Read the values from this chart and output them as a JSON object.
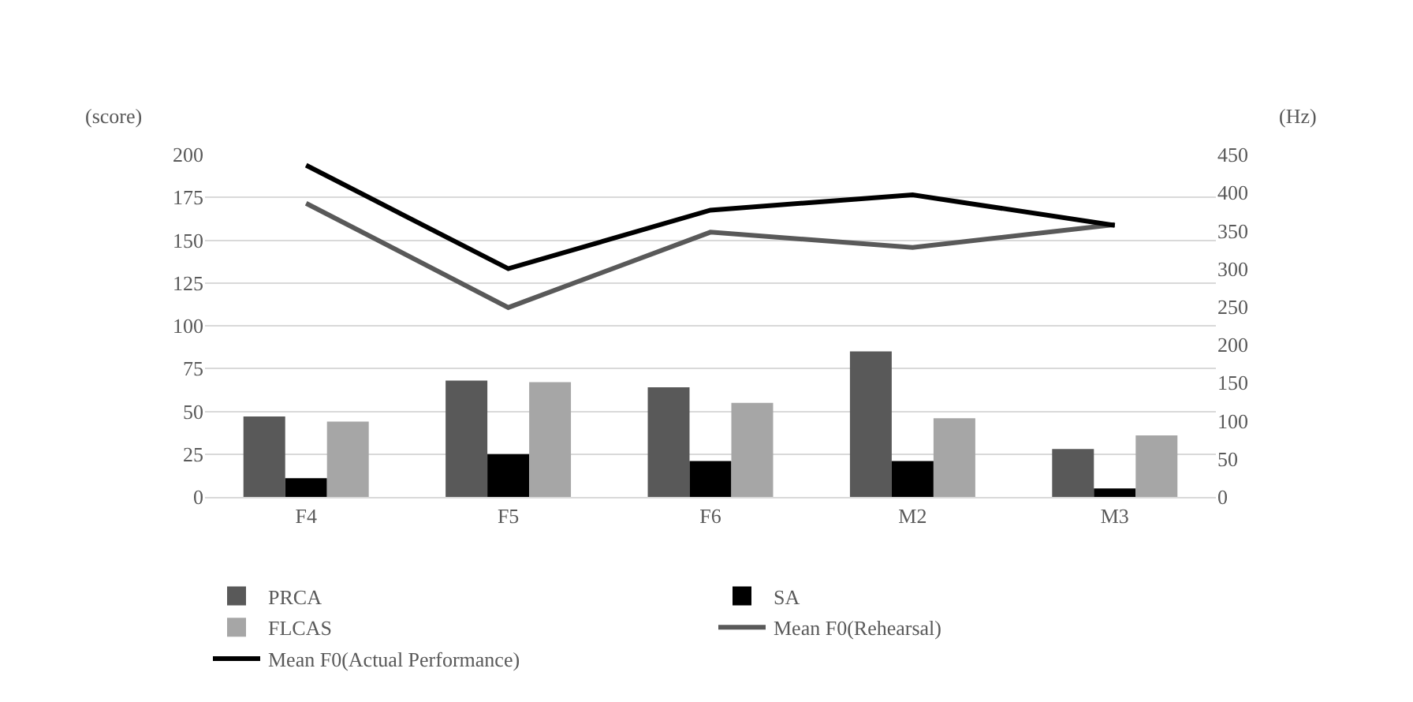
{
  "chart_data": {
    "type": "bar",
    "ylabel": "(score)",
    "y2label": "(Hz)",
    "categories": [
      "F4",
      "F5",
      "F6",
      "M2",
      "M3"
    ],
    "series": [
      {
        "name": "PRCA",
        "color": "#595959",
        "values": [
          47,
          68,
          64,
          85,
          28
        ]
      },
      {
        "name": "SA",
        "color": "#000000",
        "values": [
          11,
          25,
          21,
          21,
          5
        ]
      },
      {
        "name": "FLCAS",
        "color": "#a6a6a6",
        "values": [
          44,
          67,
          55,
          46,
          36
        ]
      },
      {
        "name": "Mean F0(Rehearsal)",
        "type": "line",
        "axis": "y2",
        "color": "#595959",
        "values": [
          386,
          249,
          348,
          328,
          358
        ]
      },
      {
        "name": "Mean F0(Actual Performance)",
        "type": "line",
        "axis": "y2",
        "color": "#000000",
        "values": [
          436,
          300,
          377,
          397,
          357
        ]
      }
    ],
    "ylim": [
      0,
      200
    ],
    "yticks": [
      0,
      25,
      50,
      75,
      100,
      125,
      150,
      175,
      200
    ],
    "y2lim": [
      0,
      450
    ],
    "y2ticks": [
      0,
      50,
      100,
      150,
      200,
      250,
      300,
      350,
      400,
      450
    ],
    "grid": "y",
    "legend": "bottom",
    "marker": "none",
    "line_style": "solid"
  }
}
